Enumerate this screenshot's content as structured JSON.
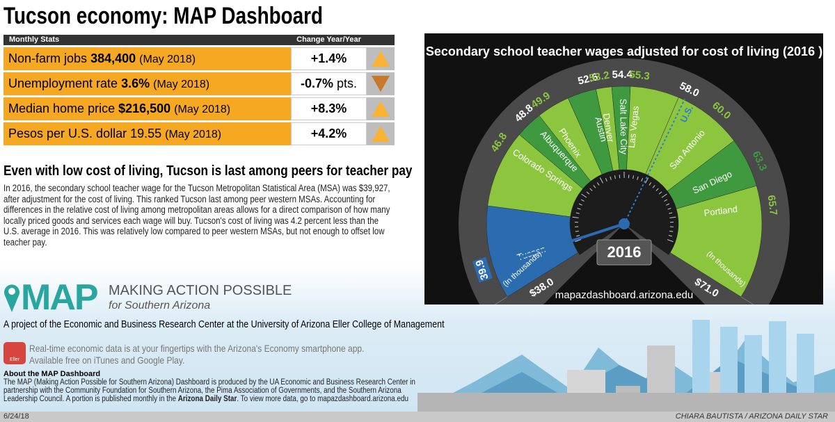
{
  "header": {
    "title": "Tucson economy: MAP Dashboard"
  },
  "stats": {
    "column_label": "Monthly Stats",
    "change_label": "Change Year/Year",
    "arrow_colors": {
      "up": "#f9b233",
      "down": "#c8782b"
    },
    "rows": [
      {
        "label": "Non-farm jobs",
        "value": "384,400",
        "period": "(May 2018)",
        "change": "+1.4%",
        "direction": "up"
      },
      {
        "label": "Unemployment rate",
        "value": "3.6%",
        "period": "(May 2018)",
        "change": "-0.7%",
        "change_unit": "pts.",
        "direction": "down"
      },
      {
        "label": "Median home price",
        "value": "$216,500",
        "period": "(May 2018)",
        "change": "+8.3%",
        "direction": "up"
      },
      {
        "label": "Pesos per U.S. dollar 19.55",
        "period": "(May 2018)",
        "change": "+4.2%",
        "direction": "up"
      }
    ]
  },
  "article": {
    "heading": "Even with low cost of living, Tucson is last among peers for teacher pay",
    "body": "In 2016, the secondary school teacher wage for the Tucson Metropolitan Statistical Area (MSA) was $39,927, after adjustment for the cost of living. This ranked Tucson last among peer western MSAs. Accounting for differences in the relative cost of living among metropolitan areas allows for a direct comparison of how many locally priced goods and services each wage will buy. Tucson's cost of living was 4.2 percent less than the U.S. average in 2016. This was relatively low compared to peer western MSAs, but not enough to offset low teacher pay."
  },
  "logo": {
    "name": "MAP",
    "tagline": "MAKING ACTION POSSIBLE",
    "subtitle": "for Southern Arizona"
  },
  "project": "A project of the Economic and Business Research Center at the University of Arizona Eller College of Management",
  "app": {
    "icon_label": "Eller",
    "line1": "Real-time economic data is at your fingertips with the Arizona's Economy smartphone app.",
    "line2": "Available free on iTunes and Google Play."
  },
  "about": {
    "heading": "About the MAP Dashboard",
    "text": "The MAP (Making Action Possible for Southern Arizona) Dashboard is produced by the UA Economic and Business Research Center in partnership with the Community Foundation for Southern Arizona, the Pima Association of Governments, and the Southern Arizona Leadership Council. A portion is published monthly in the",
    "bold": "Arizona Daily Star",
    "tail": ". To view more data, go to mapazdashboard.arizona.edu"
  },
  "footer": {
    "date": "6/24/18",
    "credit": "CHIARA BAUTISTA / ARIZONA DAILY STAR"
  },
  "chart_data": {
    "type": "gauge",
    "title": "Secondary school teacher wages adjusted for cost of living (2016 )",
    "unit_label": "(In thousands)",
    "year": "2016",
    "url": "mapazdashboard.arizona.edu",
    "ticks": [
      {
        "value": 38,
        "label": "$38.0"
      },
      {
        "value": 71,
        "label": "$71.0"
      }
    ],
    "highlight": 0,
    "highlight_color": "#2b6cb0",
    "categories": [
      "Tucson",
      "Colorado Springs",
      "Albuquerque",
      "Phoenix",
      "Austin",
      "Denver",
      "Salt Lake City",
      "Las Vegas",
      "San Antonio",
      "San Diego",
      "Portland"
    ],
    "values": [
      39.9,
      46.8,
      48.8,
      49.9,
      52.6,
      53.2,
      54.4,
      55.3,
      60.0,
      63.3,
      65.7
    ],
    "value_labels": [
      "39.9",
      "46.8",
      "48.8",
      "49.9",
      "52.6",
      "53.2",
      "54.4",
      "55.3",
      "60.0",
      "63.3",
      "65.7"
    ],
    "colors": [
      "#2b6cb0",
      "#8cc63f",
      "#3f9a3f",
      "#8cc63f",
      "#3f9a3f",
      "#8cc63f",
      "#3f9a3f",
      "#8cc63f",
      "#8cc63f",
      "#3f9a3f",
      "#8cc63f"
    ],
    "reference": {
      "name": "U.S.",
      "value": 58.0,
      "value_label": "58.0",
      "color": "#2b7fd0"
    }
  }
}
